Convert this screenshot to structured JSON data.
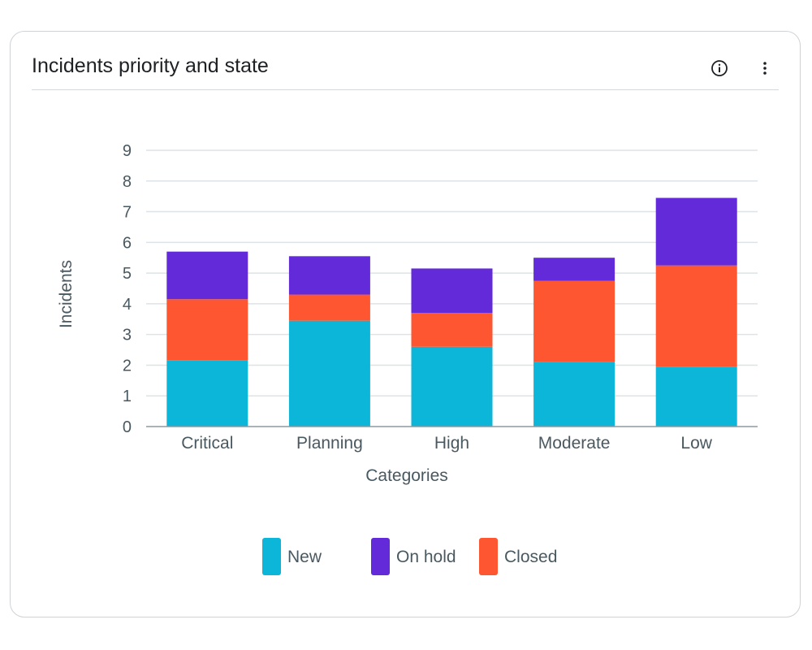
{
  "widget": {
    "title": "Incidents priority and state",
    "info_icon": "info-circle-icon",
    "menu_icon": "more-vertical-icon"
  },
  "chart_data": {
    "type": "bar",
    "stacked": true,
    "categories": [
      "Critical",
      "Planning",
      "High",
      "Moderate",
      "Low"
    ],
    "series": [
      {
        "name": "New",
        "color": "#0bb6d8",
        "values": [
          2.15,
          3.45,
          2.6,
          2.1,
          1.95
        ]
      },
      {
        "name": "Closed",
        "color": "#fd5631",
        "values": [
          2.0,
          0.85,
          1.1,
          2.65,
          3.3
        ]
      },
      {
        "name": "On hold",
        "color": "#622ad9",
        "values": [
          1.55,
          1.25,
          1.45,
          0.75,
          2.2
        ]
      }
    ],
    "legend": [
      "New",
      "On hold",
      "Closed"
    ],
    "xlabel": "Categories",
    "ylabel": "Incidents",
    "yticks": [
      0,
      1,
      2,
      3,
      4,
      5,
      6,
      7,
      8,
      9
    ],
    "ylim": [
      0,
      9
    ],
    "grid": true,
    "legend_position": "bottom"
  }
}
